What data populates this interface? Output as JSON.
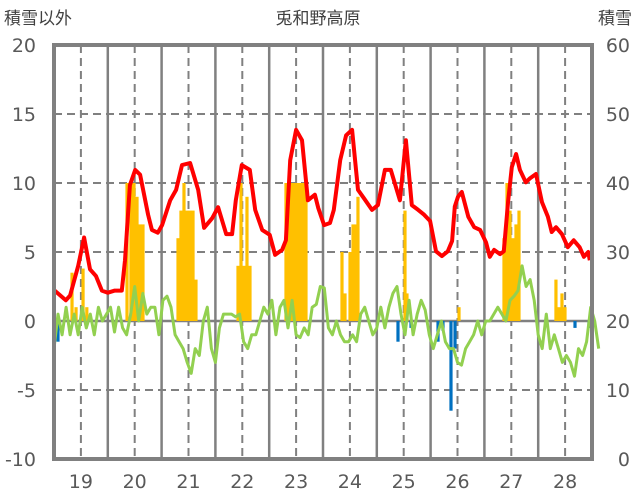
{
  "chart_data": {
    "type": "bar+line",
    "title": "兎和野高原",
    "ylabel_left": "積雪以外",
    "ylabel_right": "積雪",
    "xlim": [
      19,
      29
    ],
    "ylim_left": [
      -10,
      20
    ],
    "ylim_right": [
      0,
      60
    ],
    "x_tick_labels": [
      "19",
      "20",
      "21",
      "22",
      "23",
      "24",
      "25",
      "26",
      "27",
      "28"
    ],
    "y_left_ticks": [
      "20",
      "15",
      "10",
      "5",
      "0",
      "-5",
      "-10"
    ],
    "y_right_ticks": [
      "60",
      "50",
      "40",
      "30",
      "20",
      "10",
      "0"
    ],
    "grid": true,
    "colors": {
      "snow_depth": "#ff0000",
      "snowfall": "#ffc000",
      "decrease": "#0070c0",
      "other": "#92d050",
      "baseline": "#7030a0",
      "frame": "#808080"
    },
    "series": [
      {
        "name": "snow_depth",
        "axis": "right",
        "kind": "line",
        "points": [
          [
            19.0,
            24.5
          ],
          [
            19.22,
            23.0
          ],
          [
            19.3,
            23.7
          ],
          [
            19.45,
            28.0
          ],
          [
            19.56,
            32.1
          ],
          [
            19.67,
            27.5
          ],
          [
            19.78,
            26.5
          ],
          [
            19.89,
            24.4
          ],
          [
            20.0,
            24.1
          ],
          [
            20.13,
            24.4
          ],
          [
            20.26,
            24.4
          ],
          [
            20.32,
            28.8
          ],
          [
            20.41,
            39.7
          ],
          [
            20.51,
            41.9
          ],
          [
            20.6,
            41.2
          ],
          [
            20.75,
            35.4
          ],
          [
            20.82,
            33.2
          ],
          [
            20.93,
            32.8
          ],
          [
            21.01,
            33.9
          ],
          [
            21.16,
            37.5
          ],
          [
            21.27,
            39.0
          ],
          [
            21.38,
            42.6
          ],
          [
            21.53,
            42.9
          ],
          [
            21.68,
            39.0
          ],
          [
            21.79,
            33.5
          ],
          [
            21.94,
            34.9
          ],
          [
            22.05,
            36.5
          ],
          [
            22.2,
            32.6
          ],
          [
            22.31,
            32.6
          ],
          [
            22.38,
            37.5
          ],
          [
            22.49,
            42.6
          ],
          [
            22.64,
            41.9
          ],
          [
            22.74,
            36.1
          ],
          [
            22.87,
            33.2
          ],
          [
            23.01,
            32.5
          ],
          [
            23.11,
            29.6
          ],
          [
            23.24,
            30.3
          ],
          [
            23.31,
            31.7
          ],
          [
            23.39,
            43.3
          ],
          [
            23.5,
            47.7
          ],
          [
            23.61,
            46.2
          ],
          [
            23.72,
            37.5
          ],
          [
            23.85,
            38.3
          ],
          [
            23.91,
            36.4
          ],
          [
            24.02,
            33.9
          ],
          [
            24.13,
            34.2
          ],
          [
            24.2,
            36.1
          ],
          [
            24.32,
            43.3
          ],
          [
            24.43,
            46.9
          ],
          [
            24.54,
            47.7
          ],
          [
            24.65,
            39.0
          ],
          [
            24.76,
            37.8
          ],
          [
            24.91,
            36.1
          ],
          [
            25.02,
            36.8
          ],
          [
            25.15,
            41.9
          ],
          [
            25.26,
            41.9
          ],
          [
            25.43,
            37.5
          ],
          [
            25.54,
            46.2
          ],
          [
            25.65,
            36.8
          ],
          [
            25.77,
            36.1
          ],
          [
            25.88,
            35.4
          ],
          [
            25.99,
            34.5
          ],
          [
            26.1,
            30.1
          ],
          [
            26.21,
            29.4
          ],
          [
            26.32,
            30.1
          ],
          [
            26.4,
            31.6
          ],
          [
            26.45,
            36.6
          ],
          [
            26.51,
            38.0
          ],
          [
            26.58,
            38.7
          ],
          [
            26.7,
            35.1
          ],
          [
            26.81,
            33.6
          ],
          [
            26.92,
            33.2
          ],
          [
            27.03,
            31.4
          ],
          [
            27.1,
            29.3
          ],
          [
            27.18,
            30.3
          ],
          [
            27.29,
            29.7
          ],
          [
            27.36,
            30.1
          ],
          [
            27.44,
            37.3
          ],
          [
            27.51,
            42.3
          ],
          [
            27.59,
            44.2
          ],
          [
            27.66,
            41.9
          ],
          [
            27.77,
            40.1
          ],
          [
            27.85,
            40.7
          ],
          [
            27.96,
            41.3
          ],
          [
            28.07,
            37.2
          ],
          [
            28.18,
            35.1
          ],
          [
            28.25,
            32.9
          ],
          [
            28.33,
            33.6
          ],
          [
            28.44,
            32.6
          ],
          [
            28.55,
            30.7
          ],
          [
            28.66,
            31.7
          ],
          [
            28.77,
            30.7
          ],
          [
            28.85,
            29.3
          ],
          [
            28.93,
            30.0
          ],
          [
            28.96,
            28.8
          ]
        ]
      },
      {
        "name": "snowfall",
        "axis": "left",
        "kind": "bar",
        "points": [
          [
            19.335,
            3.5
          ],
          [
            19.41,
            1
          ],
          [
            19.54,
            3.8
          ],
          [
            19.61,
            1
          ],
          [
            20.357,
            10
          ],
          [
            20.43,
            10
          ],
          [
            20.487,
            10
          ],
          [
            20.543,
            9
          ],
          [
            20.6,
            7
          ],
          [
            20.654,
            7
          ],
          [
            21.305,
            6
          ],
          [
            21.36,
            8
          ],
          [
            21.416,
            10
          ],
          [
            21.472,
            8
          ],
          [
            21.528,
            8
          ],
          [
            21.584,
            8
          ],
          [
            21.639,
            3
          ],
          [
            22.42,
            4
          ],
          [
            22.476,
            10
          ],
          [
            22.53,
            4
          ],
          [
            22.587,
            9
          ],
          [
            22.643,
            4
          ],
          [
            23.312,
            10
          ],
          [
            23.368,
            10
          ],
          [
            23.424,
            10
          ],
          [
            23.48,
            10
          ],
          [
            23.535,
            10
          ],
          [
            23.591,
            10
          ],
          [
            23.647,
            10
          ],
          [
            23.684,
            9
          ],
          [
            24.353,
            5
          ],
          [
            24.409,
            2
          ],
          [
            24.502,
            5
          ],
          [
            24.558,
            7
          ],
          [
            24.613,
            7
          ],
          [
            24.65,
            9
          ],
          [
            25.524,
            8
          ],
          [
            25.561,
            2
          ],
          [
            26.528,
            1
          ],
          [
            27.364,
            6
          ],
          [
            27.42,
            10
          ],
          [
            27.476,
            8
          ],
          [
            27.532,
            6
          ],
          [
            27.587,
            7
          ],
          [
            27.643,
            8
          ],
          [
            28.33,
            3
          ],
          [
            28.387,
            1
          ],
          [
            28.442,
            2
          ],
          [
            28.498,
            1
          ]
        ]
      },
      {
        "name": "decrease",
        "axis": "left",
        "kind": "bar",
        "points": [
          [
            19.074,
            -1.5
          ],
          [
            25.394,
            -1.5
          ],
          [
            25.636,
            -0.5
          ],
          [
            26.138,
            -1.5
          ],
          [
            26.23,
            -0.7
          ],
          [
            26.379,
            -6.5
          ],
          [
            26.454,
            -2
          ],
          [
            28.684,
            -0.5
          ],
          [
            28.944,
            -0.5
          ]
        ]
      },
      {
        "name": "other",
        "axis": "left",
        "kind": "line",
        "x_start": 19.0,
        "x_step_hours": 1.8,
        "values": [
          -2,
          0.5,
          -1,
          1,
          -1,
          0.5,
          -1,
          1,
          -0.5,
          0.5,
          -1,
          1,
          0,
          0.5,
          1,
          -0.8,
          1,
          -0.5,
          -1,
          0.5,
          2.5,
          0,
          2,
          0.5,
          1,
          1,
          -1,
          1.5,
          1.8,
          1,
          -1,
          -1.5,
          -2,
          -3,
          -3.8,
          -2,
          -2.5,
          0,
          1,
          -2,
          -3,
          -0.5,
          0.5,
          0.5,
          0.5,
          0.3,
          0.5,
          -1.5,
          -2,
          -1,
          -1,
          0,
          1,
          0.5,
          1.5,
          -1,
          1,
          1.5,
          -0.5,
          1.5,
          -1,
          -1.2,
          -0.5,
          -1,
          1,
          1.2,
          2.5,
          2.4,
          -0.5,
          -1,
          0,
          -1,
          -1.5,
          -1.5,
          -1,
          -1.5,
          0.5,
          1,
          0,
          -1,
          -0.5,
          1,
          -0.5,
          1,
          2,
          2.5,
          0.5,
          -1,
          1.5,
          -1,
          0.5,
          1.5,
          0.8,
          -1,
          -2,
          -1,
          0,
          -1.5,
          -2,
          -2,
          -3,
          -3.2,
          -2,
          -1.5,
          -1,
          0,
          -1,
          0,
          0,
          0.5,
          1,
          0.5,
          0,
          1.5,
          1.8,
          2.2,
          4,
          2.5,
          3,
          1.5,
          -1,
          -2,
          0.5,
          -2,
          -1,
          -2,
          -3,
          -2.5,
          -3,
          -4,
          -2,
          -2.5,
          -1.5,
          1,
          0,
          -2
        ]
      },
      {
        "name": "baseline",
        "axis": "left",
        "kind": "line",
        "points": [
          [
            19,
            -10
          ],
          [
            29,
            -10
          ]
        ]
      }
    ]
  }
}
